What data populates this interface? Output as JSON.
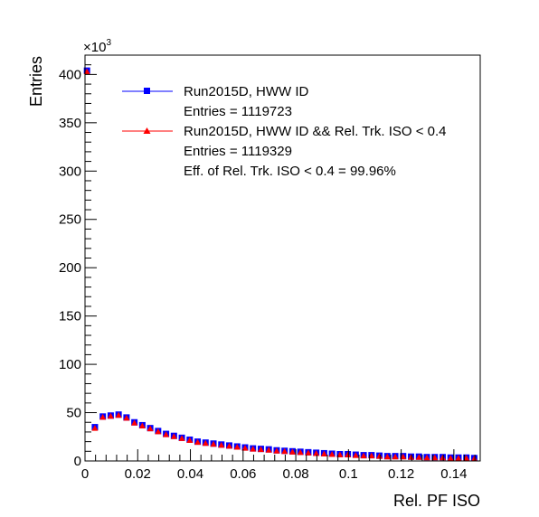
{
  "chart_data": {
    "type": "scatter",
    "title": "",
    "xlabel": "Rel. PF ISO",
    "ylabel": "Entries",
    "y_multiplier_label": "×10",
    "y_multiplier_exp": "3",
    "xlim": [
      0,
      0.15
    ],
    "ylim": [
      0,
      420
    ],
    "grid": false,
    "legend_position": "top-right",
    "x_ticks": [
      {
        "v": 0,
        "label": "0"
      },
      {
        "v": 0.02,
        "label": "0.02"
      },
      {
        "v": 0.04,
        "label": "0.04"
      },
      {
        "v": 0.06,
        "label": "0.06"
      },
      {
        "v": 0.08,
        "label": "0.08"
      },
      {
        "v": 0.1,
        "label": "0.1"
      },
      {
        "v": 0.12,
        "label": "0.12"
      },
      {
        "v": 0.14,
        "label": "0.14"
      }
    ],
    "y_ticks": [
      {
        "v": 0,
        "label": "0"
      },
      {
        "v": 50,
        "label": "50"
      },
      {
        "v": 100,
        "label": "100"
      },
      {
        "v": 150,
        "label": "150"
      },
      {
        "v": 200,
        "label": "200"
      },
      {
        "v": 250,
        "label": "250"
      },
      {
        "v": 300,
        "label": "300"
      },
      {
        "v": 350,
        "label": "350"
      },
      {
        "v": 400,
        "label": "400"
      }
    ],
    "x": [
      0.00075,
      0.00375,
      0.00675,
      0.00975,
      0.01275,
      0.01575,
      0.01875,
      0.02175,
      0.02475,
      0.02775,
      0.03075,
      0.03375,
      0.03675,
      0.03975,
      0.04275,
      0.04575,
      0.04875,
      0.05175,
      0.05475,
      0.05775,
      0.06075,
      0.06375,
      0.06675,
      0.06975,
      0.07275,
      0.07575,
      0.07875,
      0.08175,
      0.08475,
      0.08775,
      0.09075,
      0.09375,
      0.09675,
      0.09975,
      0.10275,
      0.10575,
      0.10875,
      0.11175,
      0.11475,
      0.11775,
      0.12075,
      0.12375,
      0.12675,
      0.12975,
      0.13275,
      0.13575,
      0.13875,
      0.14175,
      0.14475,
      0.14775
    ],
    "series": [
      {
        "name": "Run2015D, HWW ID",
        "entries_text": "Entries = 1119723",
        "color": "#0000ff",
        "marker": "square",
        "values": [
          404,
          35,
          46,
          47,
          48,
          45,
          40,
          37,
          34,
          31,
          28,
          26,
          24,
          22,
          20,
          19,
          18,
          17,
          16,
          15,
          14,
          13,
          12.5,
          12,
          11,
          10.5,
          10,
          9.5,
          9,
          8.5,
          8,
          7.5,
          7,
          7,
          6.5,
          6,
          6,
          5.5,
          5,
          5,
          5,
          4.5,
          4.5,
          4,
          4,
          4,
          3.5,
          3.5,
          3.5,
          3
        ]
      },
      {
        "name": "Run2015D, HWW ID && Rel. Trk. ISO < 0.4",
        "entries_text": "Entries = 1119329",
        "color": "#ff0000",
        "marker": "triangle",
        "values": [
          403,
          34,
          45.5,
          46.5,
          47.5,
          44.5,
          39.5,
          36.5,
          33.5,
          30.5,
          27.5,
          25.5,
          23.5,
          21.5,
          19.5,
          18.5,
          17.5,
          16.5,
          15.5,
          14.5,
          13.5,
          12.5,
          12,
          11.5,
          10.5,
          10,
          9.5,
          9,
          8.5,
          8,
          7.5,
          7,
          6.5,
          6.5,
          6,
          5.5,
          5.5,
          5,
          4.5,
          4.5,
          4.5,
          4,
          4,
          3.5,
          3.5,
          3.5,
          3,
          3,
          3,
          2.5
        ]
      }
    ],
    "annotation": "Eff. of Rel. Trk. ISO < 0.4 =  99.96%"
  }
}
